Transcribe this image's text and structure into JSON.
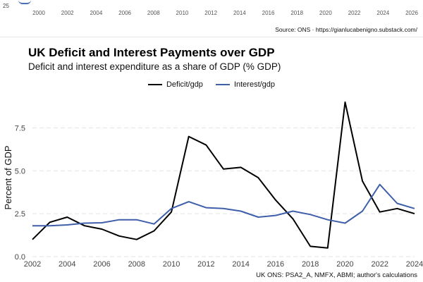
{
  "previous_figure": {
    "y_tick": "25",
    "x_ticks": [
      "2000",
      "2002",
      "2004",
      "2006",
      "2008",
      "2010",
      "2012",
      "2014",
      "2016",
      "2018",
      "2020",
      "2022",
      "2024",
      "2026"
    ],
    "source": "Source: ONS · https://gianlucabenigno.substack.com/"
  },
  "colors": {
    "deficit": "#000000",
    "interest": "#3f5fab",
    "grid": "#e3e3e3"
  },
  "chart_data": {
    "type": "line",
    "title": "UK Deficit and Interest Payments over GDP",
    "subtitle": "Deficit and interest expenditure as a share of GDP (% GDP)",
    "xlabel": "",
    "ylabel": "Percent of GDP",
    "x": [
      2002,
      2003,
      2004,
      2005,
      2006,
      2007,
      2008,
      2009,
      2010,
      2011,
      2012,
      2013,
      2014,
      2015,
      2016,
      2017,
      2018,
      2019,
      2020,
      2021,
      2022,
      2023,
      2024
    ],
    "series": [
      {
        "name": "Deficit/gdp",
        "values": [
          1.0,
          2.0,
          2.3,
          1.8,
          1.6,
          1.2,
          1.0,
          1.5,
          2.6,
          7.0,
          6.5,
          5.1,
          5.2,
          4.6,
          3.3,
          2.2,
          0.6,
          0.5,
          9.0,
          4.4,
          2.6,
          2.8,
          2.5
        ]
      },
      {
        "name": "Interest/gdp",
        "values": [
          1.8,
          1.8,
          1.85,
          1.95,
          1.97,
          2.15,
          2.15,
          1.9,
          2.8,
          3.2,
          2.85,
          2.8,
          2.65,
          2.3,
          2.4,
          2.65,
          2.45,
          2.15,
          1.95,
          2.65,
          4.2,
          3.1,
          2.8
        ]
      }
    ],
    "x_ticks": [
      2002,
      2004,
      2006,
      2008,
      2010,
      2012,
      2014,
      2016,
      2018,
      2020,
      2022,
      2024
    ],
    "y_ticks": [
      0.0,
      2.5,
      5.0,
      7.5
    ],
    "y_tick_labels": [
      "0.0",
      "2.5",
      "5.0",
      "7.5"
    ],
    "xlim": [
      2002,
      2024
    ],
    "ylim": [
      0,
      9.2
    ],
    "legend_position": "top-center",
    "caption": "UK ONS: PSA2_A, NMFX, ABMI; author's calculations"
  }
}
